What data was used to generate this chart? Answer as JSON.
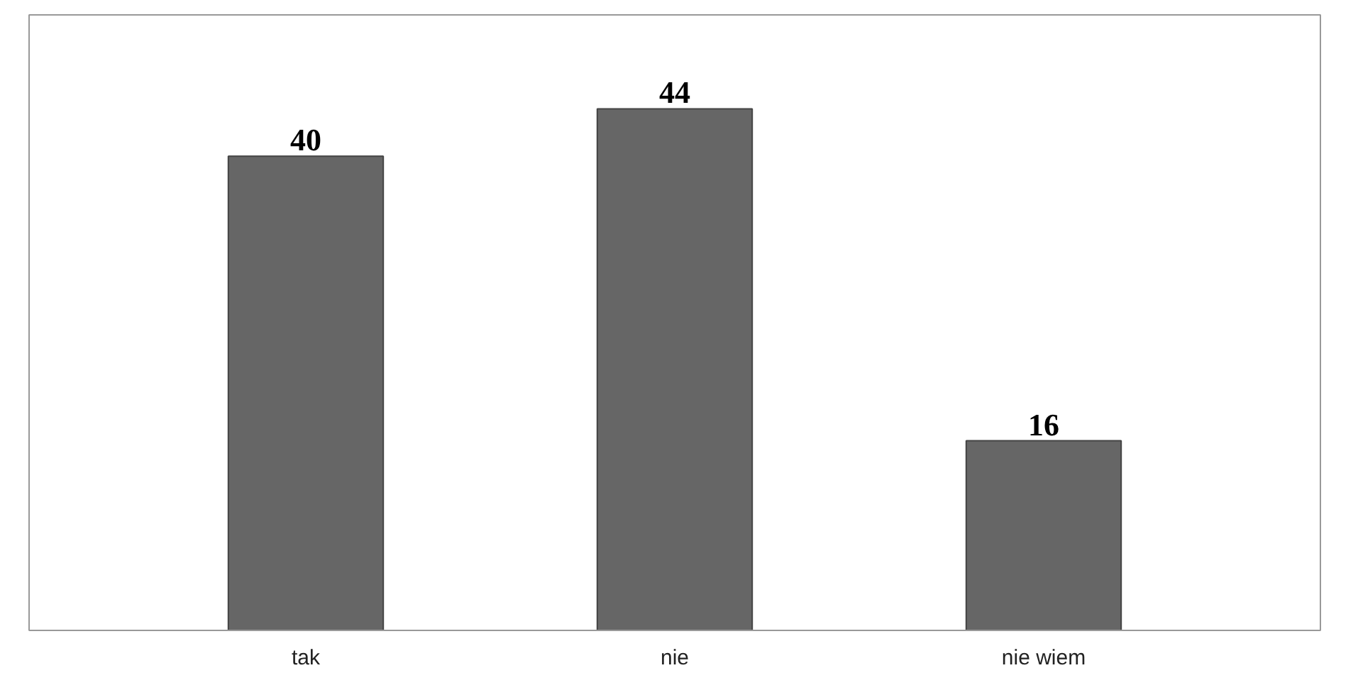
{
  "chart_data": {
    "type": "bar",
    "categories": [
      "tak",
      "nie",
      "nie wiem"
    ],
    "values": [
      40,
      44,
      16
    ],
    "color": "#666666",
    "data_labels": true,
    "grid": false
  }
}
